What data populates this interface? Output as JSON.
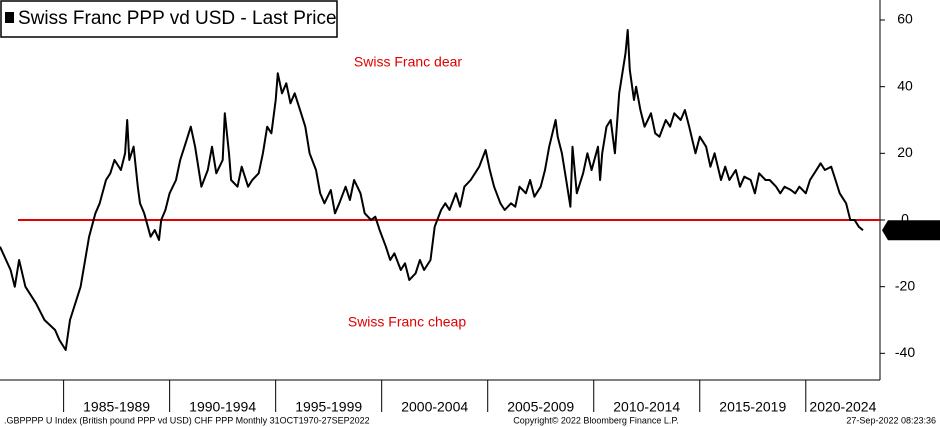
{
  "chart_data": {
    "type": "line",
    "title": "Swiss Franc PPP vd USD - Last Price",
    "annotations": [
      "Swiss Franc dear",
      "Swiss Franc cheap"
    ],
    "footer_left": ".GBPPPP U Index (British pound PPP vd USD) CHF PPP  Monthly 31OCT1970-27SEP2022",
    "footer_center": "Copyright© 2022 Bloomberg Finance L.P.",
    "footer_right": "27-Sep-2022 08:23:36",
    "color": "#000000",
    "reference_line": {
      "value": 0,
      "color": "#e00000"
    },
    "x": [
      1982.0,
      1982.5,
      1982.7,
      1982.9,
      1983.2,
      1983.7,
      1984.1,
      1984.6,
      1984.8,
      1985.1,
      1985.3,
      1985.8,
      1986.2,
      1986.5,
      1986.7,
      1987.0,
      1987.2,
      1987.4,
      1987.7,
      1987.9,
      1988.0,
      1988.1,
      1988.3,
      1988.5,
      1988.6,
      1988.8,
      1989.1,
      1989.3,
      1989.5,
      1989.6,
      1989.8,
      1990.0,
      1990.3,
      1990.5,
      1990.7,
      1991.0,
      1991.2,
      1991.3,
      1991.5,
      1991.8,
      1992.0,
      1992.2,
      1992.5,
      1992.6,
      1992.8,
      1992.9,
      1993.2,
      1993.4,
      1993.7,
      1993.9,
      1994.2,
      1994.4,
      1994.6,
      1994.8,
      1995.0,
      1995.1,
      1995.3,
      1995.5,
      1995.7,
      1995.9,
      1996.2,
      1996.4,
      1996.6,
      1996.9,
      1997.1,
      1997.3,
      1997.6,
      1997.8,
      1998.0,
      1998.3,
      1998.5,
      1998.7,
      1999.0,
      1999.2,
      1999.5,
      1999.7,
      1999.9,
      2000.2,
      2000.4,
      2000.6,
      2000.9,
      2001.1,
      2001.3,
      2001.6,
      2001.8,
      2002.0,
      2002.3,
      2002.5,
      2002.8,
      2003.0,
      2003.2,
      2003.5,
      2003.7,
      2003.9,
      2004.2,
      2004.4,
      2004.6,
      2004.9,
      2005.1,
      2005.3,
      2005.6,
      2005.8,
      2006.1,
      2006.3,
      2006.5,
      2006.8,
      2007.0,
      2007.2,
      2007.5,
      2007.7,
      2007.9,
      2008.2,
      2008.3,
      2008.5,
      2008.7,
      2008.9,
      2009.0,
      2009.2,
      2009.5,
      2009.7,
      2009.9,
      2010.2,
      2010.3,
      2010.4,
      2010.6,
      2010.8,
      2011.0,
      2011.2,
      2011.5,
      2011.6,
      2011.7,
      2011.9,
      2012.0,
      2012.2,
      2012.4,
      2012.7,
      2012.9,
      2013.1,
      2013.4,
      2013.6,
      2013.8,
      2014.1,
      2014.3,
      2014.5,
      2014.8,
      2015.0,
      2015.3,
      2015.5,
      2015.7,
      2016.0,
      2016.2,
      2016.4,
      2016.7,
      2016.9,
      2017.1,
      2017.4,
      2017.6,
      2017.8,
      2018.1,
      2018.3,
      2018.6,
      2018.8,
      2019.0,
      2019.3,
      2019.5,
      2019.7,
      2020.0,
      2020.2,
      2020.4,
      2020.7,
      2020.9,
      2021.2,
      2021.4,
      2021.6,
      2021.9,
      2022.1,
      2022.3,
      2022.5,
      2022.7
    ],
    "values": [
      -8,
      -15,
      -20,
      -12,
      -20,
      -25,
      -30,
      -33,
      -36,
      -39,
      -30,
      -20,
      -5,
      2,
      5,
      12,
      14,
      18,
      15,
      20,
      30,
      18,
      22,
      10,
      5,
      2,
      -5,
      -3,
      -6,
      0,
      3,
      8,
      12,
      18,
      22,
      28,
      22,
      18,
      10,
      15,
      22,
      14,
      18,
      32,
      20,
      12,
      10,
      16,
      10,
      12,
      14,
      20,
      28,
      26,
      36,
      44,
      38,
      41,
      35,
      38,
      32,
      28,
      20,
      15,
      8,
      5,
      9,
      2,
      5,
      10,
      6,
      12,
      8,
      2,
      0,
      1,
      -3,
      -8,
      -12,
      -10,
      -15,
      -13,
      -18,
      -16,
      -12,
      -15,
      -12,
      -2,
      3,
      5,
      3,
      8,
      4,
      10,
      12,
      14,
      16,
      21,
      15,
      10,
      5,
      3,
      5,
      4,
      10,
      8,
      12,
      7,
      10,
      15,
      22,
      30,
      25,
      20,
      12,
      4,
      22,
      8,
      14,
      20,
      15,
      22,
      12,
      20,
      28,
      30,
      20,
      38,
      50,
      57,
      45,
      36,
      40,
      33,
      28,
      32,
      26,
      25,
      30,
      28,
      32,
      30,
      33,
      28,
      20,
      25,
      22,
      16,
      20,
      12,
      16,
      12,
      15,
      10,
      13,
      12,
      8,
      14,
      12,
      12,
      10,
      8,
      10,
      9,
      8,
      10,
      8,
      12,
      14,
      17,
      15,
      16,
      12,
      8,
      5,
      0,
      0,
      -2,
      -3.0852
    ],
    "xlim": [
      1982,
      2023.5
    ],
    "xticks": [
      1985,
      1990,
      1995,
      2000,
      2005,
      2010,
      2015,
      2020
    ],
    "x_labels": [
      "1985-1989",
      "1990-1994",
      "1995-1999",
      "2000-2004",
      "2005-2009",
      "2010-2014",
      "2015-2019",
      "2020-2024"
    ],
    "ylim": [
      -48,
      66
    ],
    "yticks": [
      -40,
      -20,
      0,
      20,
      40,
      60
    ]
  }
}
